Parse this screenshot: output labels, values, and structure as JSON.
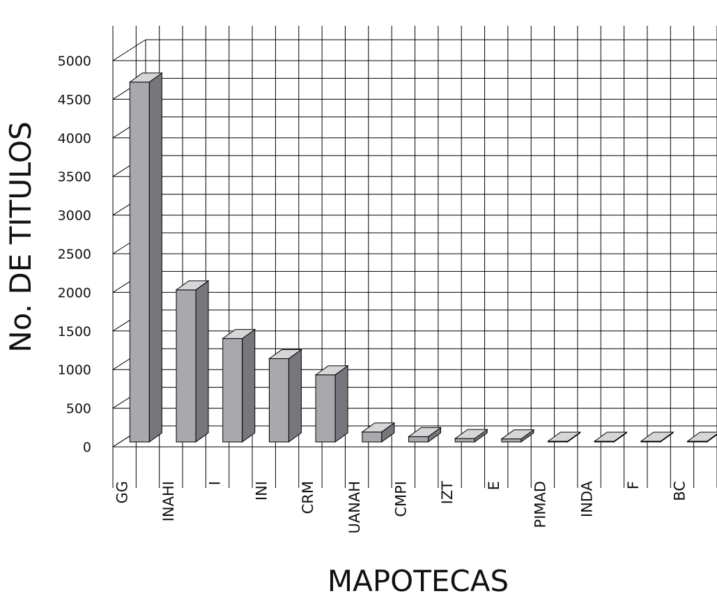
{
  "chart_data": {
    "type": "bar",
    "title": "",
    "xlabel": "MAPOTECAS",
    "ylabel": "No. DE TITULOS",
    "ylim": [
      0,
      5000
    ],
    "yticks": [
      "0",
      "500",
      "1000",
      "1500",
      "2000",
      "2500",
      "3000",
      "3500",
      "4000",
      "4500",
      "5000"
    ],
    "categories": [
      "GG",
      "INAHI",
      "I",
      "INI",
      "CRM",
      "UANAH",
      "CMPI",
      "IZT",
      "E",
      "PIMAD",
      "INDA",
      "F",
      "BC"
    ],
    "values": [
      4650,
      1960,
      1330,
      1070,
      860,
      120,
      60,
      35,
      30,
      0,
      0,
      0,
      0
    ],
    "grid": true,
    "style": "3d-column",
    "colors": {
      "front": "#a9a9ad",
      "side": "#76767c",
      "top": "#d6d6d8",
      "grid": "#000000"
    }
  }
}
